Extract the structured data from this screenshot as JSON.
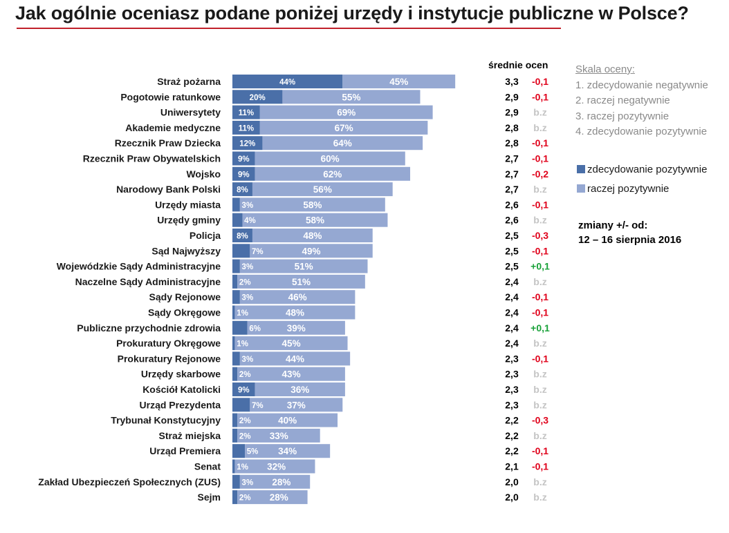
{
  "title": "Jak ogólnie oceniasz podane poniżej urzędy i instytucje publiczne w Polsce?",
  "averages_header": "średnie ocen",
  "scale": {
    "title": "Skala oceny:",
    "items": [
      "1. zdecydowanie negatywnie",
      "2. raczej negatywnie",
      "3. raczej pozytywnie",
      "4. zdecydowanie pozytywnie"
    ]
  },
  "changes_note": {
    "line1": "zmiany +/- od:",
    "line2": "12 – 16 sierpnia 2016"
  },
  "colors": {
    "strong": "#4a6fa8",
    "rather": "#95a8d2",
    "negative_change": "#e0001a",
    "positive_change": "#1aa23a",
    "no_change": "#c4c4c4",
    "rule": "#c0202a"
  },
  "chart_data": {
    "type": "bar",
    "orientation": "horizontal",
    "stacked": true,
    "title": "Jak ogólnie oceniasz podane poniżej urzędy i instytucje publiczne w Polsce?",
    "categories": [
      "Straż pożarna",
      "Pogotowie ratunkowe",
      "Uniwersytety",
      "Akademie medyczne",
      "Rzecznik Praw Dziecka",
      "Rzecznik Praw Obywatelskich",
      "Wojsko",
      "Narodowy Bank Polski",
      "Urzędy miasta",
      "Urzędy gminy",
      "Policja",
      "Sąd Najwyższy",
      "Wojewódzkie Sądy Administracyjne",
      "Naczelne Sądy Administracyjne",
      "Sądy Rejonowe",
      "Sądy Okręgowe",
      "Publiczne przychodnie zdrowia",
      "Prokuratury Okręgowe",
      "Prokuratury Rejonowe",
      "Urzędy skarbowe",
      "Kościół Katolicki",
      "Urząd Prezydenta",
      "Trybunał Konstytucyjny",
      "Straż miejska",
      "Urząd Premiera",
      "Senat",
      "Zakład Ubezpieczeń Społecznych (ZUS)",
      "Sejm"
    ],
    "series": [
      {
        "name": "zdecydowanie pozytywnie",
        "color": "#4a6fa8",
        "values": [
          44,
          20,
          11,
          11,
          12,
          9,
          9,
          8,
          3,
          4,
          8,
          7,
          3,
          2,
          3,
          1,
          6,
          1,
          3,
          2,
          9,
          7,
          2,
          2,
          5,
          1,
          3,
          2
        ]
      },
      {
        "name": "raczej pozytywnie",
        "color": "#95a8d2",
        "values": [
          45,
          55,
          69,
          67,
          64,
          60,
          62,
          56,
          58,
          58,
          48,
          49,
          51,
          51,
          46,
          48,
          39,
          45,
          44,
          43,
          36,
          37,
          40,
          33,
          34,
          32,
          28,
          28
        ]
      }
    ],
    "averages": [
      "3,3",
      "2,9",
      "2,9",
      "2,8",
      "2,8",
      "2,7",
      "2,7",
      "2,7",
      "2,6",
      "2,6",
      "2,5",
      "2,5",
      "2,5",
      "2,4",
      "2,4",
      "2,4",
      "2,4",
      "2,4",
      "2,3",
      "2,3",
      "2,3",
      "2,3",
      "2,2",
      "2,2",
      "2,2",
      "2,1",
      "2,0",
      "2,0"
    ],
    "changes": [
      "-0,1",
      "-0,1",
      "b.z",
      "b.z",
      "-0,1",
      "-0,1",
      "-0,2",
      "b.z",
      "-0,1",
      "b.z",
      "-0,3",
      "-0,1",
      "+0,1",
      "b.z",
      "-0,1",
      "-0,1",
      "+0,1",
      "b.z",
      "-0,1",
      "b.z",
      "b.z",
      "b.z",
      "-0,3",
      "b.z",
      "-0,1",
      "-0,1",
      "b.z",
      "b.z"
    ],
    "legend": [
      "zdecydowanie pozytywnie",
      "raczej pozytywnie"
    ],
    "xlabel": "",
    "ylabel": "",
    "xlim": [
      0,
      100
    ]
  }
}
